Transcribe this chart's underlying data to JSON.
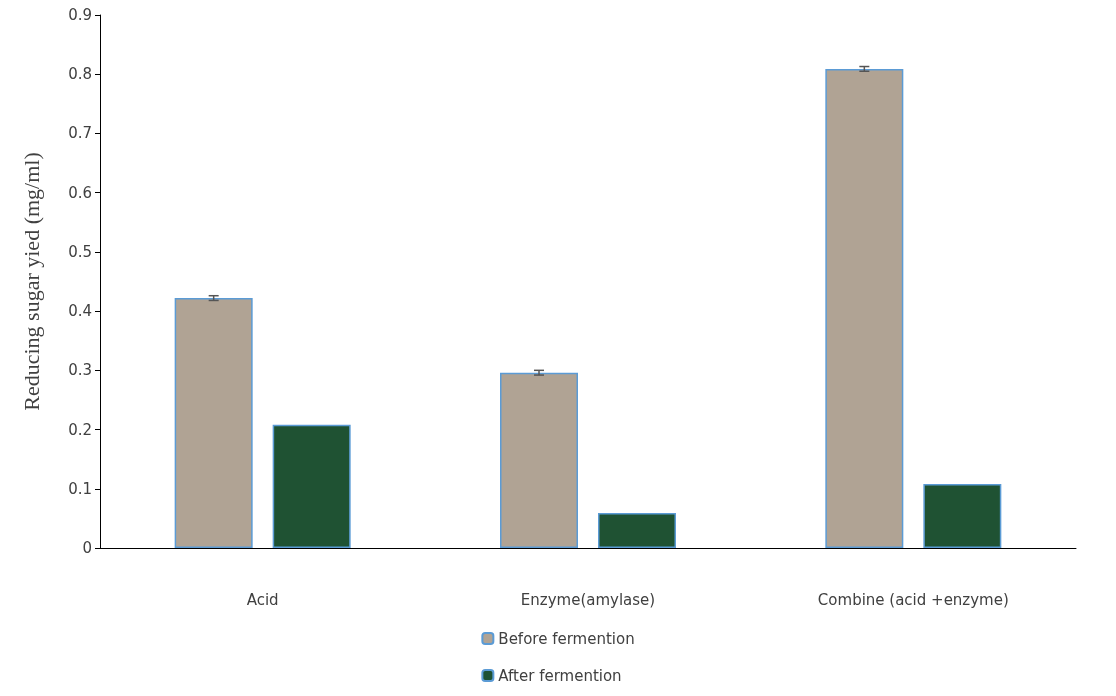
{
  "chart_data": {
    "type": "bar",
    "ylabel": "Reducing sugar yied (mg/ml)",
    "categories": [
      "Acid",
      "Enzyme(amylase)",
      "Combine (acid +enzyme)"
    ],
    "series": [
      {
        "name": "Before fermention",
        "color": "#b0a394",
        "values": [
          0.422,
          0.296,
          0.809
        ],
        "errors": [
          0.004,
          0.004,
          0.004
        ]
      },
      {
        "name": "After fermention",
        "color": "#1f5233",
        "values": [
          0.208,
          0.059,
          0.108
        ]
      }
    ],
    "ylim": [
      0,
      0.9
    ],
    "yticks": [
      0,
      0.1,
      0.2,
      0.3,
      0.4,
      0.5,
      0.6,
      0.7,
      0.8,
      0.9
    ],
    "grid": false,
    "legend": "bottom"
  }
}
